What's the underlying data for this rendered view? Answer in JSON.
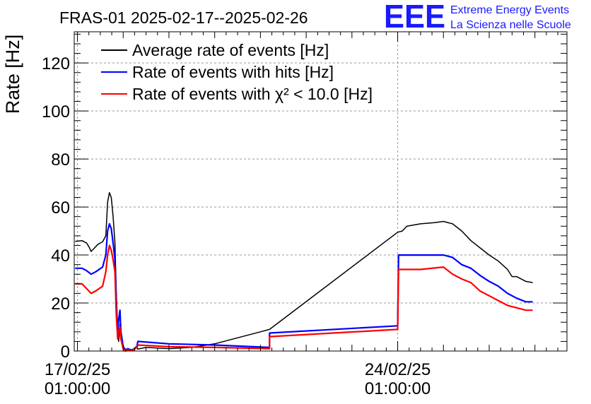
{
  "chart_data": {
    "type": "line",
    "title": "FRAS-01 2025-02-17--2025-02-26",
    "ylabel": "Rate [Hz]",
    "xlabel": "",
    "xlim": [
      -0.07,
      10.7
    ],
    "ylim": [
      0,
      133
    ],
    "x_ticks": [
      {
        "value": 0,
        "label": [
          "17/02/25",
          "01:00:00"
        ]
      },
      {
        "value": 7,
        "label": [
          "24/02/25",
          "01:00:00"
        ]
      }
    ],
    "y_ticks": [
      0,
      20,
      40,
      60,
      80,
      100,
      120
    ],
    "x_unit": "days since 17/02/25 01:00:00",
    "grid": true,
    "legend_position": "top-left",
    "logo": {
      "mark": "EEE",
      "line1": "Extreme Energy Events",
      "line2": "La Scienza nelle Scuole",
      "color": "#1a1aff"
    },
    "series": [
      {
        "name": "Average rate of events [Hz]",
        "color": "#000000",
        "points": [
          [
            -0.05,
            45.7
          ],
          [
            0.1,
            46
          ],
          [
            0.2,
            45
          ],
          [
            0.25,
            43.5
          ],
          [
            0.3,
            41.5
          ],
          [
            0.35,
            42.5
          ],
          [
            0.45,
            44.5
          ],
          [
            0.55,
            45.5
          ],
          [
            0.62,
            48
          ],
          [
            0.66,
            62
          ],
          [
            0.7,
            66
          ],
          [
            0.74,
            64
          ],
          [
            0.78,
            56
          ],
          [
            0.82,
            45
          ],
          [
            0.85,
            25
          ],
          [
            0.88,
            8
          ],
          [
            0.9,
            4
          ],
          [
            0.93,
            11
          ],
          [
            0.96,
            5
          ],
          [
            1.02,
            1
          ],
          [
            1.1,
            0.6
          ],
          [
            1.2,
            0.6
          ],
          [
            1.3,
            1.8
          ],
          [
            1.32,
            0.8
          ],
          [
            1.5,
            1.5
          ],
          [
            2,
            1
          ],
          [
            2.5,
            1.5
          ],
          [
            3,
            3
          ],
          [
            3.5,
            5.5
          ],
          [
            4,
            8
          ],
          [
            4.2,
            9
          ],
          [
            7,
            49.5
          ],
          [
            7.1,
            50
          ],
          [
            7.2,
            52
          ],
          [
            7.5,
            53
          ],
          [
            7.8,
            53.5
          ],
          [
            8,
            54
          ],
          [
            8.2,
            53
          ],
          [
            8.4,
            50
          ],
          [
            8.6,
            46
          ],
          [
            8.8,
            43
          ],
          [
            9,
            40
          ],
          [
            9.2,
            37.5
          ],
          [
            9.4,
            34
          ],
          [
            9.5,
            31
          ],
          [
            9.6,
            31
          ],
          [
            9.8,
            29
          ],
          [
            9.95,
            28.5
          ]
        ]
      },
      {
        "name": "Rate of events with hits [Hz]",
        "color": "#0000ff",
        "points": [
          [
            -0.05,
            34.5
          ],
          [
            0.1,
            34.5
          ],
          [
            0.2,
            33.5
          ],
          [
            0.3,
            32
          ],
          [
            0.4,
            33
          ],
          [
            0.55,
            35
          ],
          [
            0.62,
            40
          ],
          [
            0.66,
            50
          ],
          [
            0.7,
            53
          ],
          [
            0.74,
            51
          ],
          [
            0.78,
            45
          ],
          [
            0.82,
            38
          ],
          [
            0.85,
            20
          ],
          [
            0.88,
            8
          ],
          [
            0.9,
            13
          ],
          [
            0.93,
            17
          ],
          [
            0.95,
            8
          ],
          [
            1.0,
            2
          ],
          [
            1.05,
            0
          ],
          [
            1.1,
            1
          ],
          [
            1.2,
            0.2
          ],
          [
            1.3,
            2
          ],
          [
            1.32,
            4
          ],
          [
            2,
            3
          ],
          [
            3,
            2.5
          ],
          [
            4.2,
            1.5
          ],
          [
            4.2,
            7.5
          ],
          [
            7.0,
            10.5
          ],
          [
            7.02,
            40
          ],
          [
            7.5,
            40
          ],
          [
            8.0,
            40
          ],
          [
            8.2,
            39
          ],
          [
            8.4,
            36
          ],
          [
            8.6,
            34.5
          ],
          [
            8.8,
            31.5
          ],
          [
            9.0,
            29
          ],
          [
            9.2,
            27
          ],
          [
            9.4,
            24
          ],
          [
            9.6,
            22
          ],
          [
            9.8,
            20.5
          ],
          [
            9.95,
            20.5
          ]
        ]
      },
      {
        "name": "Rate of events with χ² < 10.0 [Hz]",
        "color": "#ff0000",
        "points": [
          [
            -0.05,
            28
          ],
          [
            0.1,
            28
          ],
          [
            0.2,
            26
          ],
          [
            0.3,
            24
          ],
          [
            0.4,
            25
          ],
          [
            0.55,
            27
          ],
          [
            0.62,
            33
          ],
          [
            0.66,
            40
          ],
          [
            0.7,
            44
          ],
          [
            0.74,
            42
          ],
          [
            0.78,
            38
          ],
          [
            0.82,
            33
          ],
          [
            0.85,
            15
          ],
          [
            0.88,
            5
          ],
          [
            0.9,
            8
          ],
          [
            0.93,
            10
          ],
          [
            0.95,
            5
          ],
          [
            1.0,
            1
          ],
          [
            1.05,
            0
          ],
          [
            1.1,
            0.5
          ],
          [
            1.2,
            0.2
          ],
          [
            1.3,
            1.5
          ],
          [
            1.32,
            2.5
          ],
          [
            2,
            1.8
          ],
          [
            3,
            1.5
          ],
          [
            4.2,
            1
          ],
          [
            4.2,
            6
          ],
          [
            7.0,
            9
          ],
          [
            7.02,
            34
          ],
          [
            7.5,
            34
          ],
          [
            8.0,
            35
          ],
          [
            8.2,
            32
          ],
          [
            8.4,
            30
          ],
          [
            8.6,
            28.5
          ],
          [
            8.8,
            25
          ],
          [
            9.0,
            23
          ],
          [
            9.2,
            21
          ],
          [
            9.4,
            19
          ],
          [
            9.6,
            18
          ],
          [
            9.8,
            17
          ],
          [
            9.95,
            17
          ]
        ]
      }
    ]
  }
}
